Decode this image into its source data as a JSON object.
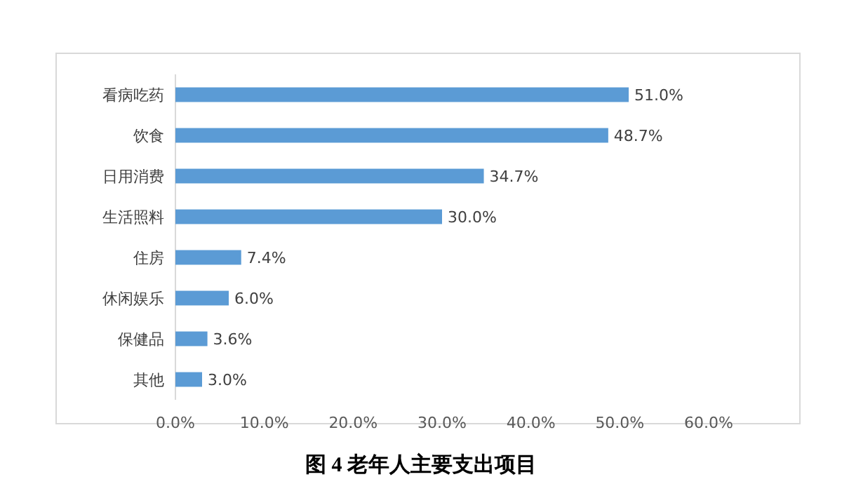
{
  "chart_data": {
    "type": "bar",
    "orientation": "horizontal",
    "title": "图 4  老年人主要支出项目",
    "categories": [
      "看病吃药",
      "饮食",
      "日用消费",
      "生活照料",
      "住房",
      "休闲娱乐",
      "保健品",
      "其他"
    ],
    "values": [
      51.0,
      48.7,
      34.7,
      30.0,
      7.4,
      6.0,
      3.6,
      3.0
    ],
    "value_labels": [
      "51.0%",
      "48.7%",
      "34.7%",
      "30.0%",
      "7.4%",
      "6.0%",
      "3.6%",
      "3.0%"
    ],
    "color": "#5b9bd5",
    "xlim": [
      0,
      60
    ],
    "xticks": [
      {
        "value": 0,
        "label": "0.0%"
      },
      {
        "value": 10,
        "label": "10.0%"
      },
      {
        "value": 20,
        "label": "20.0%"
      },
      {
        "value": 30,
        "label": "30.0%"
      },
      {
        "value": 40,
        "label": "40.0%"
      },
      {
        "value": 50,
        "label": "50.0%"
      },
      {
        "value": 60,
        "label": "60.0%"
      }
    ]
  }
}
